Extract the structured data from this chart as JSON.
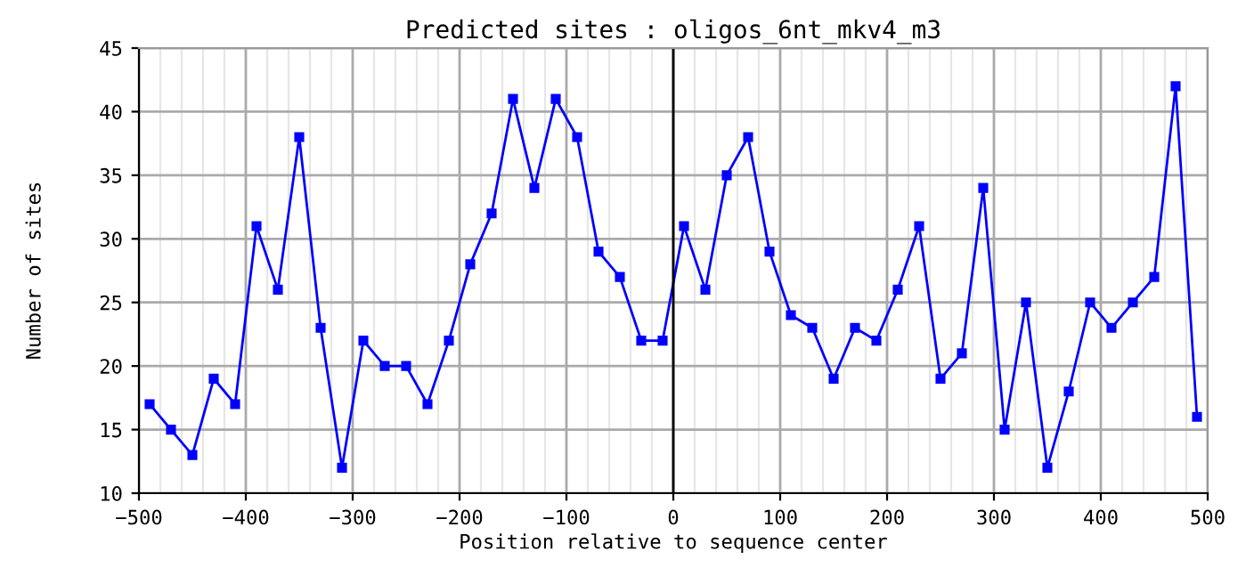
{
  "chart_data": {
    "type": "line",
    "title": "Predicted sites : oligos_6nt_mkv4_m3",
    "xlabel": "Position relative to sequence center",
    "ylabel": "Number of sites",
    "x": [
      -490,
      -470,
      -450,
      -430,
      -410,
      -390,
      -370,
      -350,
      -330,
      -310,
      -290,
      -270,
      -250,
      -230,
      -210,
      -190,
      -170,
      -150,
      -130,
      -110,
      -90,
      -70,
      -50,
      -30,
      -10,
      10,
      30,
      50,
      70,
      90,
      110,
      130,
      150,
      170,
      190,
      210,
      230,
      250,
      270,
      290,
      310,
      330,
      350,
      370,
      390,
      410,
      430,
      450,
      470,
      490
    ],
    "series": [
      {
        "color": "#0000ff",
        "values": [
          17,
          15,
          13,
          19,
          17,
          31,
          26,
          38,
          23,
          12,
          22,
          20,
          20,
          17,
          22,
          28,
          32,
          41,
          34,
          41,
          38,
          29,
          27,
          22,
          22,
          31,
          26,
          35,
          38,
          29,
          24,
          23,
          19,
          23,
          22,
          26,
          31,
          19,
          21,
          34,
          15,
          25,
          12,
          18,
          25,
          23,
          25,
          27,
          42,
          16
        ]
      }
    ],
    "xlim": [
      -500,
      500
    ],
    "xticks": [
      {
        "value": -500,
        "label": "−500"
      },
      {
        "value": -400,
        "label": "−400"
      },
      {
        "value": -300,
        "label": "−300"
      },
      {
        "value": -200,
        "label": "−200"
      },
      {
        "value": -100,
        "label": "−100"
      },
      0,
      100,
      200,
      300,
      400,
      500
    ],
    "ylim": [
      10,
      45
    ],
    "yticks": [
      10,
      15,
      20,
      25,
      30,
      35,
      40,
      45
    ],
    "ref_lines": [
      {
        "axis": "x",
        "value": 0,
        "color": "#000000"
      }
    ],
    "grid": true,
    "marker": "square",
    "line_style": "solid"
  }
}
